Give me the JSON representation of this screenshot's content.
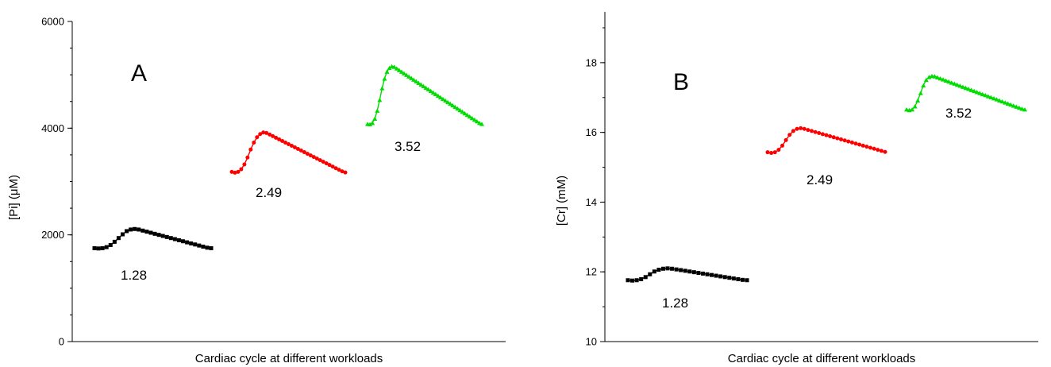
{
  "chart_data": [
    {
      "type": "line",
      "panel_label": "A",
      "xlabel": "Cardiac cycle at different workloads",
      "ylabel": "[Pi] (μM)",
      "ylim": [
        0,
        6000
      ],
      "yticks": [
        0,
        2000,
        4000,
        6000
      ],
      "ytick_labels": [
        "0",
        "2000",
        "4000",
        "6000"
      ],
      "y_minor_step": 500,
      "x_ticks": "none",
      "grid": false,
      "legend": "none",
      "series": [
        {
          "name": "1.28",
          "color": "#000000",
          "marker": "square",
          "values": [
            1750,
            1745,
            1750,
            1770,
            1810,
            1870,
            1940,
            2010,
            2070,
            2100,
            2110,
            2100,
            2080,
            2060,
            2040,
            2020,
            2000,
            1980,
            1960,
            1940,
            1920,
            1900,
            1880,
            1860,
            1840,
            1820,
            1800,
            1780,
            1760,
            1750
          ]
        },
        {
          "name": "2.49",
          "color": "#ff0000",
          "marker": "circle",
          "values": [
            3180,
            3165,
            3180,
            3230,
            3320,
            3450,
            3600,
            3730,
            3830,
            3890,
            3920,
            3910,
            3880,
            3850,
            3820,
            3790,
            3760,
            3730,
            3700,
            3670,
            3640,
            3610,
            3580,
            3550,
            3520,
            3490,
            3460,
            3430,
            3400,
            3370,
            3340,
            3310,
            3280,
            3250,
            3220,
            3190,
            3170
          ]
        },
        {
          "name": "3.52",
          "color": "#00dd00",
          "marker": "triangle",
          "values": [
            4080,
            4075,
            4100,
            4180,
            4330,
            4530,
            4750,
            4930,
            5060,
            5130,
            5160,
            5150,
            5120,
            5090,
            5060,
            5030,
            5000,
            4970,
            4940,
            4910,
            4880,
            4850,
            4820,
            4790,
            4760,
            4730,
            4700,
            4670,
            4640,
            4610,
            4580,
            4550,
            4520,
            4490,
            4460,
            4430,
            4400,
            4370,
            4340,
            4310,
            4280,
            4250,
            4220,
            4190,
            4160,
            4130,
            4100,
            4080
          ]
        }
      ]
    },
    {
      "type": "line",
      "panel_label": "B",
      "xlabel": "Cardiac cycle at different workloads",
      "ylabel": "[Cr] (mM)",
      "ylim": [
        10,
        19
      ],
      "yticks": [
        10,
        12,
        14,
        16,
        18
      ],
      "ytick_labels": [
        "10",
        "12",
        "14",
        "16",
        "18"
      ],
      "y_minor_step": 1,
      "x_ticks": "none",
      "grid": false,
      "legend": "none",
      "series": [
        {
          "name": "1.28",
          "color": "#000000",
          "marker": "square",
          "values": [
            11.76,
            11.75,
            11.76,
            11.79,
            11.85,
            11.93,
            12.01,
            12.06,
            12.09,
            12.1,
            12.09,
            12.07,
            12.05,
            12.03,
            12.01,
            11.99,
            11.97,
            11.95,
            11.93,
            11.91,
            11.89,
            11.87,
            11.85,
            11.83,
            11.81,
            11.79,
            11.77,
            11.76
          ]
        },
        {
          "name": "2.49",
          "color": "#ff0000",
          "marker": "circle",
          "values": [
            15.43,
            15.41,
            15.43,
            15.5,
            15.62,
            15.78,
            15.93,
            16.04,
            16.1,
            16.12,
            16.1,
            16.07,
            16.04,
            16.01,
            15.98,
            15.95,
            15.92,
            15.89,
            15.86,
            15.83,
            15.8,
            15.77,
            15.74,
            15.71,
            15.68,
            15.65,
            15.62,
            15.59,
            15.56,
            15.53,
            15.5,
            15.47,
            15.44
          ]
        },
        {
          "name": "3.52",
          "color": "#00dd00",
          "marker": "triangle",
          "values": [
            16.66,
            16.64,
            16.66,
            16.75,
            16.92,
            17.13,
            17.35,
            17.51,
            17.59,
            17.62,
            17.61,
            17.58,
            17.55,
            17.52,
            17.49,
            17.46,
            17.43,
            17.4,
            17.37,
            17.34,
            17.31,
            17.28,
            17.25,
            17.22,
            17.19,
            17.16,
            17.13,
            17.1,
            17.07,
            17.04,
            17.01,
            16.98,
            16.95,
            16.92,
            16.89,
            16.86,
            16.83,
            16.8,
            16.77,
            16.74,
            16.71,
            16.68,
            16.66
          ]
        }
      ]
    }
  ]
}
